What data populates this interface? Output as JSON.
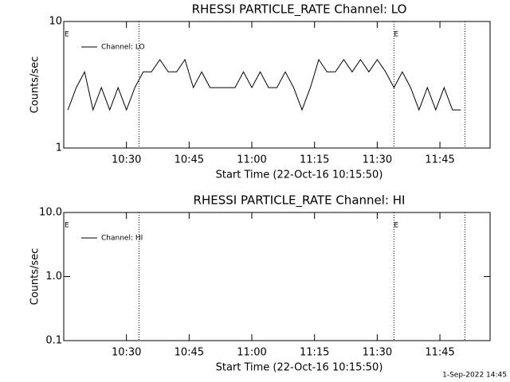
{
  "chart_data": [
    {
      "type": "line",
      "title": "RHESSI PARTICLE_RATE Channel: LO",
      "xlabel": "Start Time (22-Oct-16 10:15:50)",
      "ylabel": "Counts/sec",
      "log_y": true,
      "ylim": [
        1,
        10
      ],
      "yticks": [
        1,
        10
      ],
      "xlim": [
        "10:15",
        "11:57"
      ],
      "xticks": [
        "10:30",
        "10:45",
        "11:00",
        "11:15",
        "11:30",
        "11:45"
      ],
      "x": [
        "10:16",
        "10:18",
        "10:20",
        "10:22",
        "10:24",
        "10:26",
        "10:28",
        "10:30",
        "10:32",
        "10:34",
        "10:36",
        "10:38",
        "10:40",
        "10:42",
        "10:44",
        "10:46",
        "10:48",
        "10:50",
        "10:52",
        "10:54",
        "10:56",
        "10:58",
        "11:00",
        "11:02",
        "11:04",
        "11:06",
        "11:08",
        "11:10",
        "11:12",
        "11:14",
        "11:16",
        "11:18",
        "11:20",
        "11:22",
        "11:24",
        "11:26",
        "11:28",
        "11:30",
        "11:32",
        "11:34",
        "11:36",
        "11:38",
        "11:40",
        "11:42",
        "11:44",
        "11:46",
        "11:48",
        "11:50"
      ],
      "series": [
        {
          "name": "Channel: LO",
          "color": "#000000",
          "values": [
            2,
            3,
            4,
            2,
            3,
            2,
            3,
            2,
            3,
            4,
            4,
            5,
            4,
            4,
            5,
            3,
            4,
            3,
            3,
            3,
            3,
            4,
            3,
            4,
            3,
            3,
            4,
            3,
            2,
            3,
            5,
            4,
            4,
            5,
            4,
            5,
            4,
            5,
            4,
            3,
            4,
            3,
            2,
            3,
            2,
            3,
            2,
            2
          ]
        }
      ],
      "vlines": [
        "10:33",
        "11:34",
        "11:51"
      ],
      "event_labels": [
        {
          "x": "10:15",
          "text": "E"
        },
        {
          "x": "11:34",
          "text": "E"
        }
      ]
    },
    {
      "type": "line",
      "title": "RHESSI PARTICLE_RATE Channel: HI",
      "xlabel": "Start Time (22-Oct-16 10:15:50)",
      "ylabel": "Counts/sec",
      "log_y": true,
      "ylim": [
        0.1,
        10
      ],
      "yticks": [
        0.1,
        {
          "value": 1,
          "label": "1.0"
        },
        {
          "value": 10,
          "label": "10.0"
        }
      ],
      "xlim": [
        "10:15",
        "11:57"
      ],
      "xticks": [
        "10:30",
        "10:45",
        "11:00",
        "11:15",
        "11:30",
        "11:45"
      ],
      "x": [],
      "series": [
        {
          "name": "Channel: HI",
          "color": "#000000",
          "values": []
        }
      ],
      "vlines": [
        "10:33",
        "11:34",
        "11:51"
      ],
      "event_labels": [
        {
          "x": "10:15",
          "text": "E"
        },
        {
          "x": "11:34",
          "text": "E"
        }
      ]
    }
  ],
  "footer": "1-Sep-2022 14:45"
}
